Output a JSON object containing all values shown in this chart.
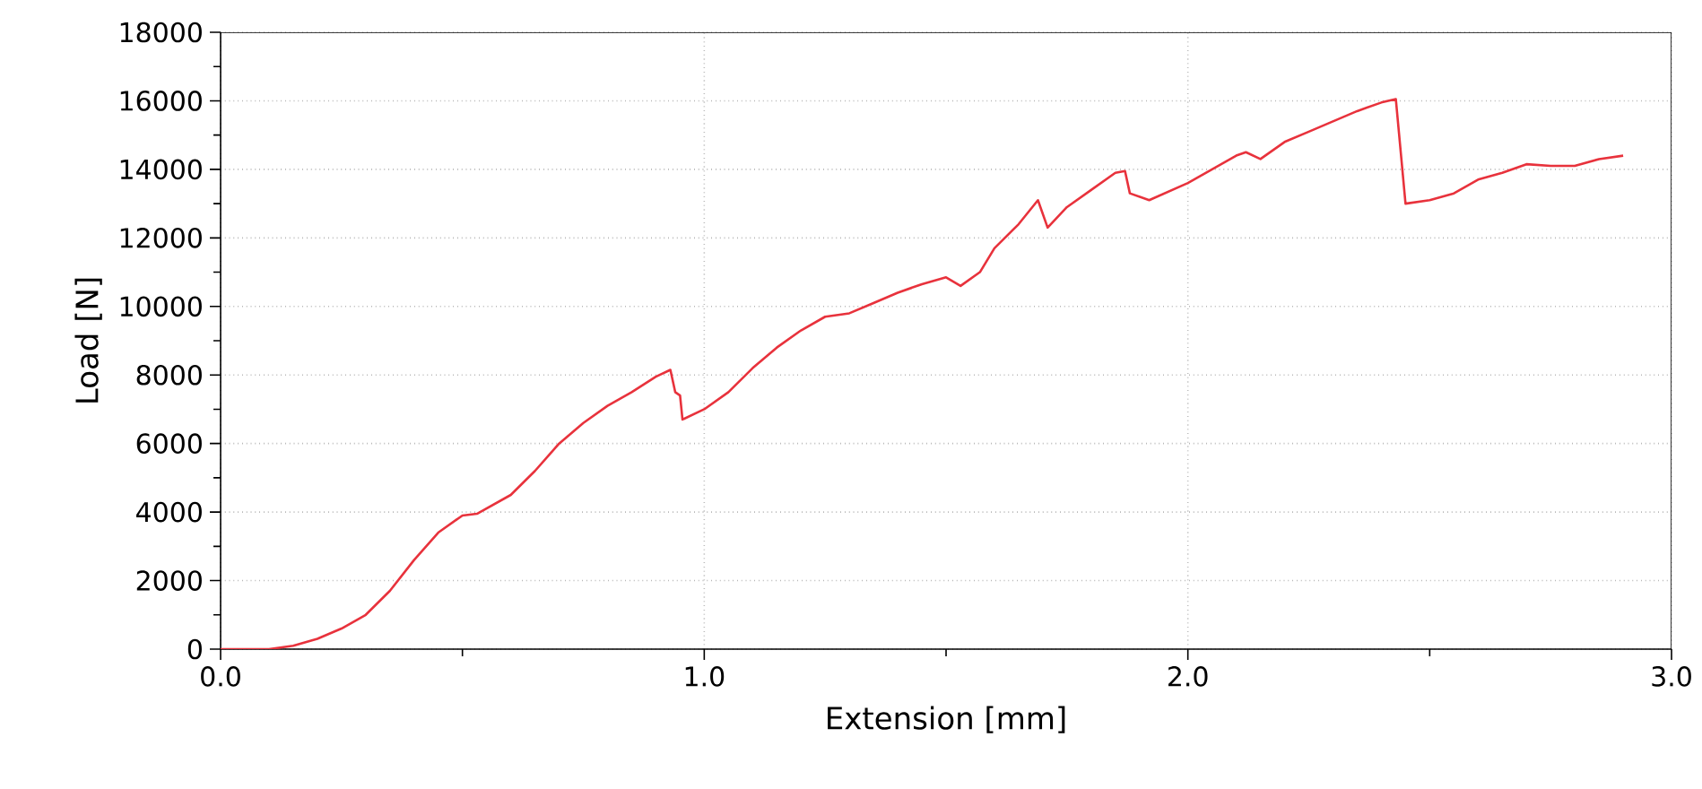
{
  "chart_data": {
    "type": "line",
    "xlabel": "Extension [mm]",
    "ylabel": "Load  [N]",
    "xlim": [
      0,
      3
    ],
    "ylim": [
      0,
      18000
    ],
    "xticks": [
      {
        "value": 0,
        "label": "0.0"
      },
      {
        "value": 1,
        "label": "1.0"
      },
      {
        "value": 2,
        "label": "2.0"
      },
      {
        "value": 3,
        "label": "3.0"
      }
    ],
    "yticks": [
      0,
      2000,
      4000,
      6000,
      8000,
      10000,
      12000,
      14000,
      16000,
      18000
    ],
    "grid": true,
    "marker": "none",
    "line_style": "solid",
    "series": [
      {
        "color": "#e8323c",
        "x": [
          0,
          0.1,
          0.15,
          0.2,
          0.25,
          0.3,
          0.35,
          0.4,
          0.45,
          0.5,
          0.53,
          0.6,
          0.65,
          0.7,
          0.75,
          0.8,
          0.85,
          0.9,
          0.93,
          0.94,
          0.95,
          0.955,
          1.0,
          1.05,
          1.1,
          1.15,
          1.2,
          1.25,
          1.3,
          1.35,
          1.4,
          1.45,
          1.5,
          1.53,
          1.57,
          1.6,
          1.65,
          1.69,
          1.71,
          1.75,
          1.8,
          1.85,
          1.87,
          1.88,
          1.92,
          2.0,
          2.05,
          2.1,
          2.12,
          2.15,
          2.2,
          2.25,
          2.3,
          2.35,
          2.4,
          2.43,
          2.45,
          2.5,
          2.55,
          2.6,
          2.65,
          2.7,
          2.75,
          2.8,
          2.85,
          2.9
        ],
        "values": [
          0,
          0,
          100,
          300,
          600,
          1000,
          1700,
          2600,
          3400,
          3900,
          3950,
          4500,
          5200,
          6000,
          6600,
          7100,
          7500,
          7950,
          8150,
          7500,
          7400,
          6700,
          7000,
          7500,
          8200,
          8800,
          9300,
          9700,
          9800,
          10100,
          10400,
          10650,
          10850,
          10600,
          11000,
          11700,
          12400,
          13100,
          12300,
          12900,
          13400,
          13900,
          13950,
          13300,
          13100,
          13600,
          14000,
          14400,
          14500,
          14300,
          14800,
          15100,
          15400,
          15700,
          15950,
          16050,
          13000,
          13100,
          13300,
          13700,
          13900,
          14150,
          14100,
          14100,
          14300,
          14400
        ]
      }
    ]
  }
}
